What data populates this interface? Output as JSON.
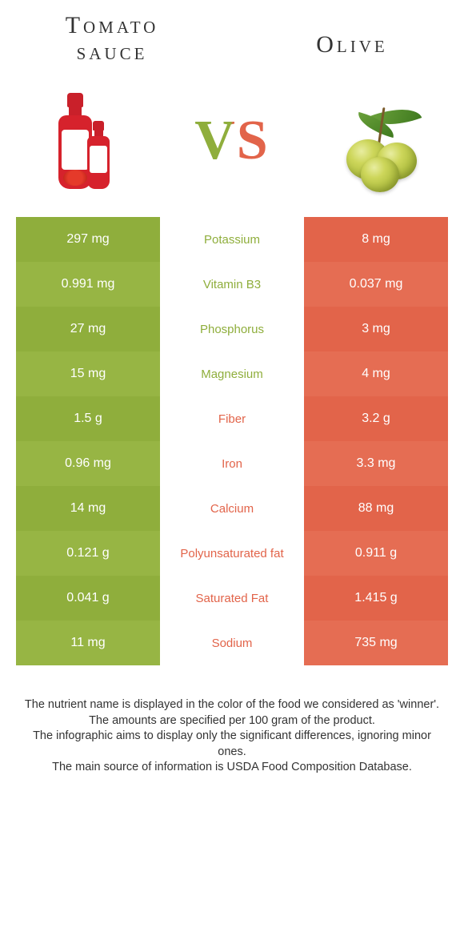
{
  "colors": {
    "left": "#8fae3c",
    "right": "#e2644a",
    "left_alt": "#97b544",
    "right_alt": "#e56d53",
    "vs_gradient_left": "#8fae3c",
    "vs_gradient_right": "#e2644a"
  },
  "header": {
    "left_title": "Tomato sauce",
    "right_title": "Olive",
    "vs": "VS"
  },
  "table": {
    "rows": [
      {
        "left": "297 mg",
        "label": "Potassium",
        "right": "8 mg",
        "winner": "left"
      },
      {
        "left": "0.991 mg",
        "label": "Vitamin B3",
        "right": "0.037 mg",
        "winner": "left"
      },
      {
        "left": "27 mg",
        "label": "Phosphorus",
        "right": "3 mg",
        "winner": "left"
      },
      {
        "left": "15 mg",
        "label": "Magnesium",
        "right": "4 mg",
        "winner": "left"
      },
      {
        "left": "1.5 g",
        "label": "Fiber",
        "right": "3.2 g",
        "winner": "right"
      },
      {
        "left": "0.96 mg",
        "label": "Iron",
        "right": "3.3 mg",
        "winner": "right"
      },
      {
        "left": "14 mg",
        "label": "Calcium",
        "right": "88 mg",
        "winner": "right"
      },
      {
        "left": "0.121 g",
        "label": "Polyunsaturated fat",
        "right": "0.911 g",
        "winner": "right"
      },
      {
        "left": "0.041 g",
        "label": "Saturated Fat",
        "right": "1.415 g",
        "winner": "right"
      },
      {
        "left": "11 mg",
        "label": "Sodium",
        "right": "735 mg",
        "winner": "right"
      }
    ]
  },
  "footer": {
    "lines": [
      "The nutrient name is displayed in the color of the food we considered as 'winner'.",
      "The amounts are specified per 100 gram of the product.",
      "The infographic aims to display only the significant differences, ignoring minor ones.",
      "The main source of information is USDA Food Composition Database."
    ]
  }
}
